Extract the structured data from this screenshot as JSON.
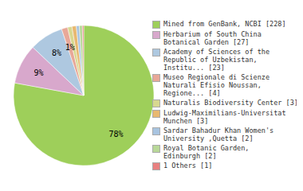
{
  "chart_data": {
    "type": "pie",
    "labels": [
      "Mined from GenBank, NCBI [228]",
      "Herbarium of South China\nBotanical Garden [27]",
      "Academy of Sciences of the\nRepublic of Uzbekistan,\nInstitu... [23]",
      "Museo Regionale di Scienze\nNaturali Efisio Noussan,\nRegione... [4]",
      "Naturalis Biodiversity Center [3]",
      "Ludwig-Maximilians-Universitat\nMunchen [3]",
      "Sardar Bahadur Khan Women's\nUniversity ,Quetta [2]",
      "Royal Botanic Garden,\nEdinburgh [2]",
      "1 Others [1]"
    ],
    "values": [
      77.8,
      9.2,
      7.8,
      1.4,
      1.0,
      1.0,
      0.7,
      0.7,
      0.3
    ],
    "value_labels": [
      "78%",
      "9%",
      "8%",
      "1%",
      null,
      null,
      null,
      null,
      null
    ],
    "colors": [
      "#9ecf5a",
      "#d8a8cc",
      "#aec8e0",
      "#e8a898",
      "#d8d890",
      "#e8b870",
      "#a8c4e0",
      "#b8d898",
      "#e88080"
    ],
    "data_labels": true,
    "legend": "right"
  }
}
